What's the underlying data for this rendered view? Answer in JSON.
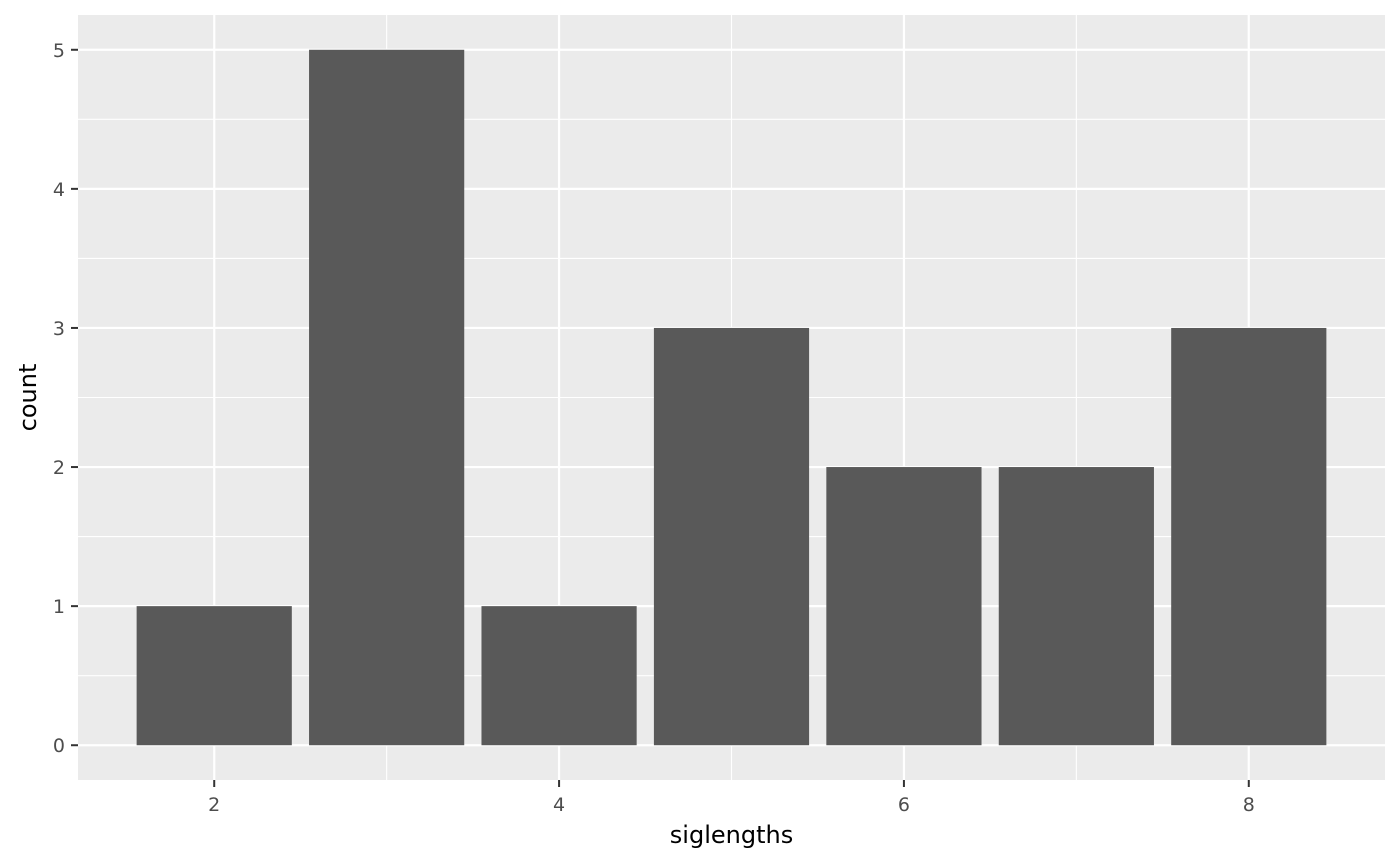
{
  "colors": {
    "panel_background": "#ebebeb",
    "grid_major": "#ffffff",
    "grid_minor": "#f5f5f5",
    "bar_fill": "#595959",
    "tick_text": "#4d4d4d",
    "tick_mark": "#333333"
  },
  "chart_data": {
    "type": "bar",
    "title": "",
    "xlabel": "siglengths",
    "ylabel": "count",
    "x": [
      2,
      3,
      4,
      5,
      6,
      7,
      8
    ],
    "values": [
      1,
      5,
      1,
      3,
      2,
      2,
      3
    ],
    "xlim": [
      1.21,
      8.79
    ],
    "ylim": [
      -0.25,
      5.25
    ],
    "x_ticks": [
      2,
      4,
      6,
      8
    ],
    "y_ticks": [
      0,
      1,
      2,
      3,
      4,
      5
    ],
    "grid": true,
    "legend": "none"
  }
}
